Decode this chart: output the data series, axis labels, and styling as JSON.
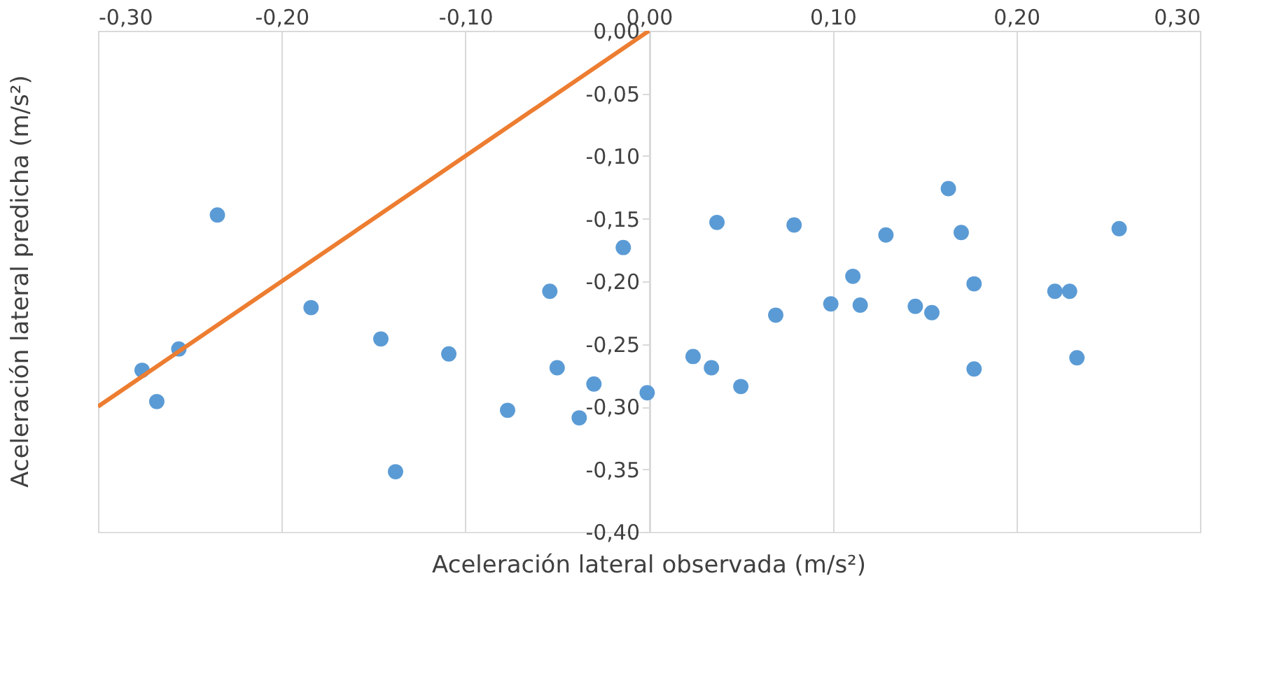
{
  "chart_data": {
    "type": "scatter",
    "xlabel": "Aceleración lateral observada (m/s²)",
    "ylabel": "Aceleración lateral predicha (m/s²)",
    "xlim": [
      -0.3,
      0.3
    ],
    "ylim": [
      -0.4,
      0.0
    ],
    "xticks": [
      {
        "value": -0.3,
        "label": "-0,30"
      },
      {
        "value": -0.2,
        "label": "-0,20"
      },
      {
        "value": -0.1,
        "label": "-0,10"
      },
      {
        "value": 0.0,
        "label": "0,00"
      },
      {
        "value": 0.1,
        "label": "0,10"
      },
      {
        "value": 0.2,
        "label": "0,20"
      },
      {
        "value": 0.3,
        "label": "0,30"
      }
    ],
    "yticks": [
      {
        "value": -0.4,
        "label": "-0,40"
      },
      {
        "value": -0.35,
        "label": "-0,35"
      },
      {
        "value": -0.3,
        "label": "-0,30"
      },
      {
        "value": -0.25,
        "label": "-0,25"
      },
      {
        "value": -0.2,
        "label": "-0,20"
      },
      {
        "value": -0.15,
        "label": "-0,15"
      },
      {
        "value": -0.1,
        "label": "-0,10"
      },
      {
        "value": -0.05,
        "label": "-0,05"
      },
      {
        "value": 0.0,
        "label": "0,00"
      }
    ],
    "grid": "x",
    "series": [
      {
        "color": "#5b9bd5",
        "marker": "circle",
        "x": [
          -0.276,
          -0.268,
          -0.256,
          -0.235,
          -0.184,
          -0.146,
          -0.138,
          -0.109,
          -0.077,
          -0.054,
          -0.05,
          -0.038,
          -0.03,
          -0.014,
          -0.001,
          0.024,
          0.034,
          0.037,
          0.05,
          0.069,
          0.079,
          0.099,
          0.111,
          0.115,
          0.129,
          0.145,
          0.154,
          0.163,
          0.17,
          0.177,
          0.177,
          0.221,
          0.229,
          0.233,
          0.256
        ],
        "values": [
          -0.271,
          -0.296,
          -0.254,
          -0.147,
          -0.221,
          -0.246,
          -0.352,
          -0.258,
          -0.303,
          -0.208,
          -0.269,
          -0.309,
          -0.282,
          -0.173,
          -0.289,
          -0.26,
          -0.269,
          -0.153,
          -0.284,
          -0.227,
          -0.155,
          -0.218,
          -0.196,
          -0.219,
          -0.163,
          -0.22,
          -0.225,
          -0.126,
          -0.161,
          -0.202,
          -0.27,
          -0.208,
          -0.208,
          -0.261,
          -0.158
        ]
      },
      {
        "type": "line",
        "marker": "none",
        "color": "#ed7d31",
        "x": [
          -0.3,
          0.0
        ],
        "values": [
          -0.3,
          0.0
        ]
      }
    ]
  }
}
